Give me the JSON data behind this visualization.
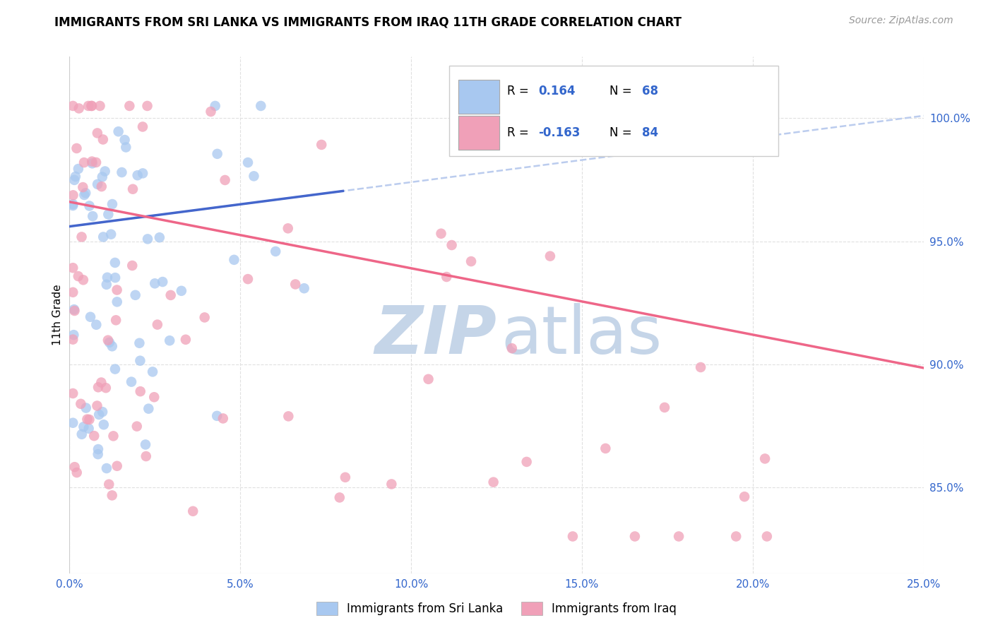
{
  "title": "IMMIGRANTS FROM SRI LANKA VS IMMIGRANTS FROM IRAQ 11TH GRADE CORRELATION CHART",
  "source": "Source: ZipAtlas.com",
  "ylabel": "11th Grade",
  "color_blue": "#A8C8F0",
  "color_pink": "#F0A0B8",
  "line_blue": "#4466CC",
  "line_pink": "#EE6688",
  "line_dashed_color": "#BBCCEE",
  "watermark_zip": "ZIP",
  "watermark_atlas": "atlas",
  "watermark_color": "#C5D5E8",
  "xlim": [
    0.0,
    0.25
  ],
  "ylim": [
    0.815,
    1.025
  ],
  "xticks": [
    0.0,
    0.05,
    0.1,
    0.15,
    0.2,
    0.25
  ],
  "xticklabels": [
    "0.0%",
    "5.0%",
    "10.0%",
    "15.0%",
    "20.0%",
    "25.0%"
  ],
  "yticks": [
    0.85,
    0.9,
    0.95,
    1.0
  ],
  "yticklabels_right": [
    "85.0%",
    "90.0%",
    "95.0%",
    "100.0%"
  ],
  "legend_r1": "R = ",
  "legend_val1": "0.164",
  "legend_n1_label": "N = ",
  "legend_n1": "68",
  "legend_r2": "R = ",
  "legend_val2": "-0.163",
  "legend_n2_label": "N = ",
  "legend_n2": "84",
  "grid_color": "#E0E0E0",
  "tick_color": "#3366CC",
  "title_color": "#000000",
  "source_color": "#999999"
}
